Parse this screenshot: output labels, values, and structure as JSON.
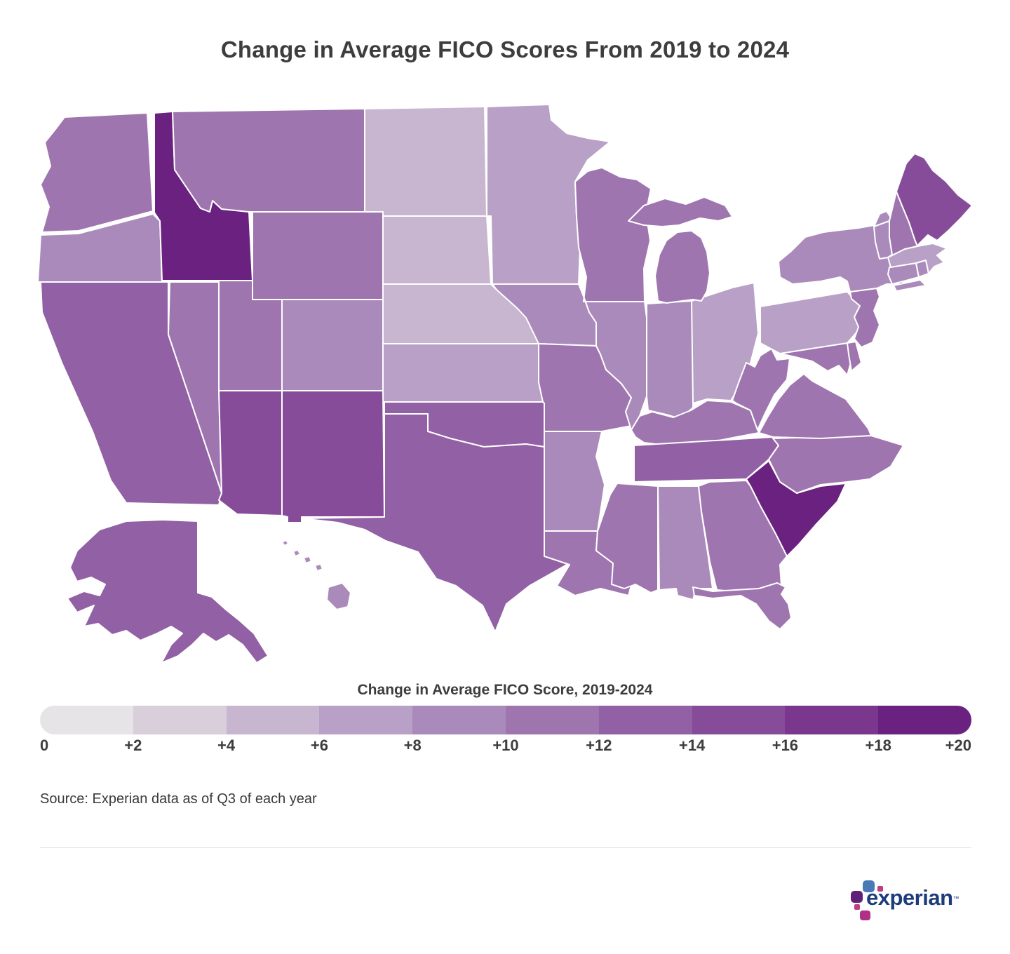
{
  "title": "Change in Average FICO Scores From 2019 to 2024",
  "legend": {
    "title": "Change in Average FICO Score, 2019-2024",
    "labels": [
      "0",
      "+2",
      "+4",
      "+6",
      "+8",
      "+10",
      "+12",
      "+14",
      "+16",
      "+18",
      "+20"
    ]
  },
  "source": "Source: Experian data as of Q3 of each year",
  "logo": {
    "text": "experian",
    "tm": "™",
    "colors": {
      "text": "#1d3c7c",
      "blue": "#4a7ab5",
      "purple": "#5f2178",
      "magenta": "#b12f87",
      "pink": "#c03d84"
    }
  },
  "chart_data": {
    "type": "heatmap",
    "map": "us-states-choropleth",
    "title": "Change in Average FICO Scores From 2019 to 2024",
    "legend_title": "Change in Average FICO Score, 2019-2024",
    "unit": "FICO score points (change, 2019-2024)",
    "scale": {
      "min": 0,
      "max": 20,
      "bin_size": 2,
      "colors": [
        "#e7e4e7",
        "#d8cfda",
        "#c8b5d0",
        "#b9a0c6",
        "#aa8aba",
        "#9f75af",
        "#9260a4",
        "#874c99",
        "#7a378d",
        "#6a2180"
      ]
    },
    "states": [
      {
        "abbr": "WA",
        "name": "Washington",
        "change": 11
      },
      {
        "abbr": "OR",
        "name": "Oregon",
        "change": 9
      },
      {
        "abbr": "CA",
        "name": "California",
        "change": 13
      },
      {
        "abbr": "ID",
        "name": "Idaho",
        "change": 18
      },
      {
        "abbr": "NV",
        "name": "Nevada",
        "change": 11
      },
      {
        "abbr": "MT",
        "name": "Montana",
        "change": 11
      },
      {
        "abbr": "WY",
        "name": "Wyoming",
        "change": 11
      },
      {
        "abbr": "UT",
        "name": "Utah",
        "change": 11
      },
      {
        "abbr": "CO",
        "name": "Colorado",
        "change": 9
      },
      {
        "abbr": "AZ",
        "name": "Arizona",
        "change": 15
      },
      {
        "abbr": "NM",
        "name": "New Mexico",
        "change": 15
      },
      {
        "abbr": "ND",
        "name": "North Dakota",
        "change": 5
      },
      {
        "abbr": "SD",
        "name": "South Dakota",
        "change": 4
      },
      {
        "abbr": "NE",
        "name": "Nebraska",
        "change": 5
      },
      {
        "abbr": "KS",
        "name": "Kansas",
        "change": 7
      },
      {
        "abbr": "OK",
        "name": "Oklahoma",
        "change": 13
      },
      {
        "abbr": "TX",
        "name": "Texas",
        "change": 13
      },
      {
        "abbr": "MN",
        "name": "Minnesota",
        "change": 7
      },
      {
        "abbr": "IA",
        "name": "Iowa",
        "change": 9
      },
      {
        "abbr": "MO",
        "name": "Missouri",
        "change": 11
      },
      {
        "abbr": "AR",
        "name": "Arkansas",
        "change": 9
      },
      {
        "abbr": "LA",
        "name": "Louisiana",
        "change": 11
      },
      {
        "abbr": "WI",
        "name": "Wisconsin",
        "change": 11
      },
      {
        "abbr": "IL",
        "name": "Illinois",
        "change": 9
      },
      {
        "abbr": "MI",
        "name": "Michigan",
        "change": 11
      },
      {
        "abbr": "IN",
        "name": "Indiana",
        "change": 9
      },
      {
        "abbr": "OH",
        "name": "Ohio",
        "change": 7
      },
      {
        "abbr": "KY",
        "name": "Kentucky",
        "change": 11
      },
      {
        "abbr": "TN",
        "name": "Tennessee",
        "change": 13
      },
      {
        "abbr": "MS",
        "name": "Mississippi",
        "change": 11
      },
      {
        "abbr": "AL",
        "name": "Alabama",
        "change": 9
      },
      {
        "abbr": "GA",
        "name": "Georgia",
        "change": 11
      },
      {
        "abbr": "FL",
        "name": "Florida",
        "change": 11
      },
      {
        "abbr": "SC",
        "name": "South Carolina",
        "change": 19
      },
      {
        "abbr": "NC",
        "name": "North Carolina",
        "change": 11
      },
      {
        "abbr": "VA",
        "name": "Virginia",
        "change": 11
      },
      {
        "abbr": "WV",
        "name": "West Virginia",
        "change": 11
      },
      {
        "abbr": "MD",
        "name": "Maryland",
        "change": 11
      },
      {
        "abbr": "DE",
        "name": "Delaware",
        "change": 11
      },
      {
        "abbr": "PA",
        "name": "Pennsylvania",
        "change": 7
      },
      {
        "abbr": "NJ",
        "name": "New Jersey",
        "change": 11
      },
      {
        "abbr": "NY",
        "name": "New York",
        "change": 9
      },
      {
        "abbr": "CT",
        "name": "Connecticut",
        "change": 9
      },
      {
        "abbr": "RI",
        "name": "Rhode Island",
        "change": 9
      },
      {
        "abbr": "MA",
        "name": "Massachusetts",
        "change": 7
      },
      {
        "abbr": "VT",
        "name": "Vermont",
        "change": 9
      },
      {
        "abbr": "NH",
        "name": "New Hampshire",
        "change": 11
      },
      {
        "abbr": "ME",
        "name": "Maine",
        "change": 15
      },
      {
        "abbr": "AK",
        "name": "Alaska",
        "change": 13
      },
      {
        "abbr": "HI",
        "name": "Hawaii",
        "change": 9
      }
    ]
  }
}
